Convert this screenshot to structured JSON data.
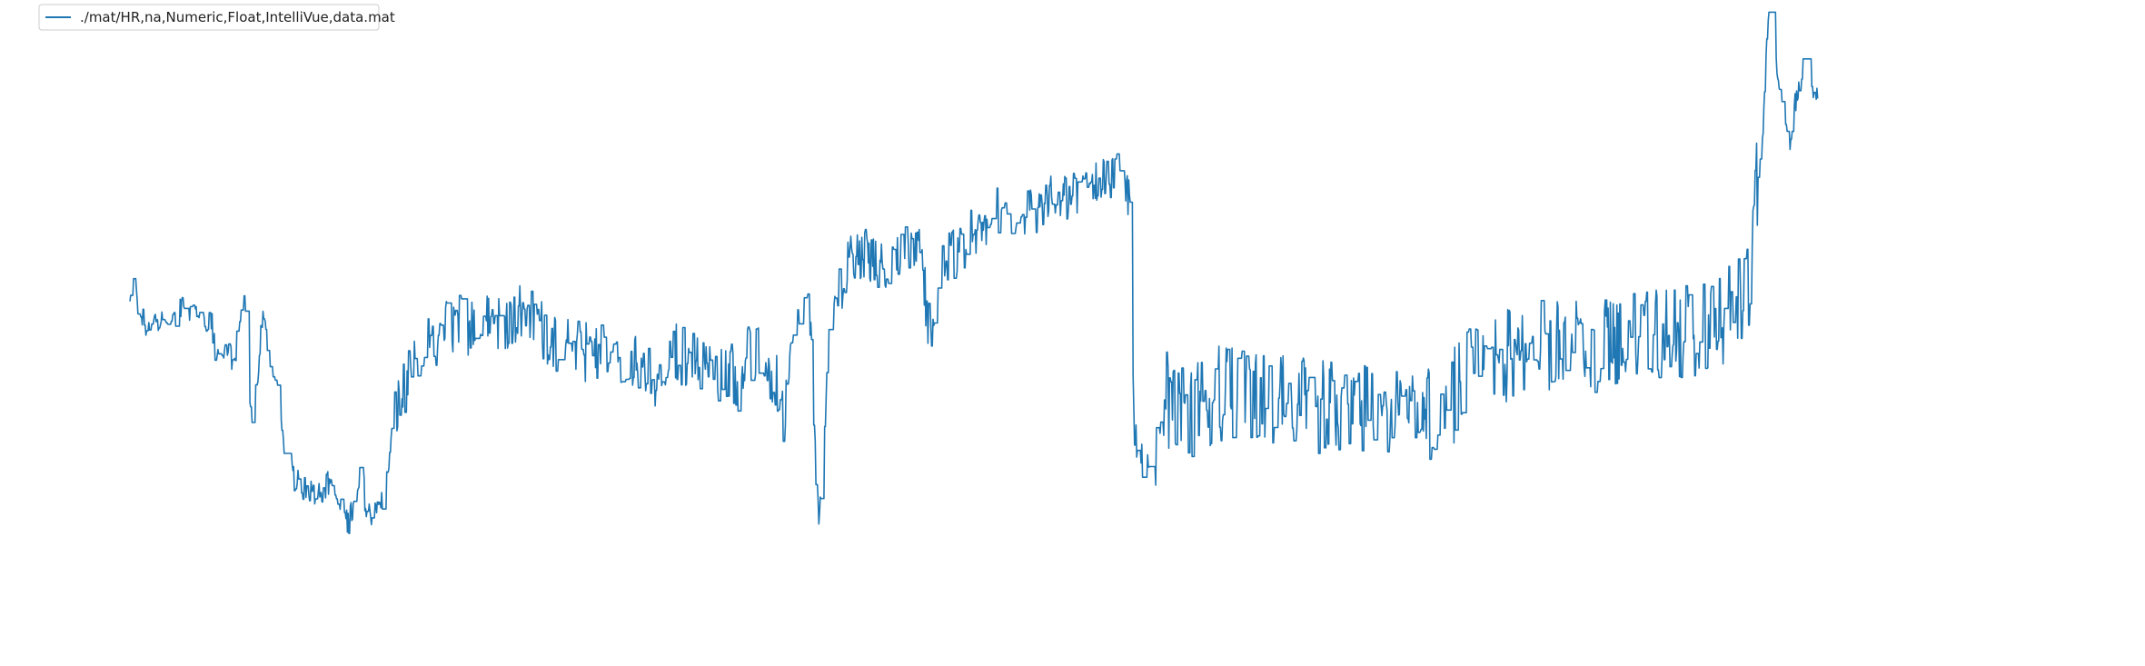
{
  "chart_data": {
    "type": "line",
    "title": "",
    "xlabel": "",
    "ylabel": "",
    "axes_visible": false,
    "grid": false,
    "legend_position": "top-left",
    "xlim": [
      0,
      2140
    ],
    "ylim": [
      0,
      100
    ],
    "series": [
      {
        "name": "./mat/HR,na,Numeric,Float,IntelliVue,data.mat",
        "color": "#1f77b4",
        "anchors": [
          [
            0,
            66.5
          ],
          [
            5,
            70
          ],
          [
            10,
            64
          ],
          [
            20,
            60
          ],
          [
            30,
            63
          ],
          [
            45,
            61
          ],
          [
            60,
            66
          ],
          [
            75,
            64
          ],
          [
            90,
            62
          ],
          [
            95,
            52
          ],
          [
            100,
            57
          ],
          [
            110,
            54
          ],
          [
            115,
            54
          ],
          [
            125,
            66
          ],
          [
            130,
            60
          ],
          [
            133,
            39
          ],
          [
            137,
            43
          ],
          [
            142,
            53
          ],
          [
            145,
            64
          ],
          [
            152,
            57
          ],
          [
            158,
            51
          ],
          [
            165,
            44
          ],
          [
            170,
            34
          ],
          [
            180,
            27
          ],
          [
            190,
            25
          ],
          [
            200,
            24
          ],
          [
            210,
            24
          ],
          [
            220,
            26
          ],
          [
            230,
            21
          ],
          [
            240,
            17
          ],
          [
            250,
            22
          ],
          [
            255,
            30
          ],
          [
            260,
            19
          ],
          [
            270,
            19
          ],
          [
            278,
            22
          ],
          [
            285,
            29
          ],
          [
            290,
            40
          ],
          [
            300,
            46
          ],
          [
            320,
            54
          ],
          [
            350,
            61
          ],
          [
            400,
            62
          ],
          [
            435,
            64
          ],
          [
            450,
            61
          ],
          [
            470,
            57
          ],
          [
            500,
            55
          ],
          [
            530,
            57
          ],
          [
            560,
            52
          ],
          [
            580,
            47
          ],
          [
            600,
            55
          ],
          [
            620,
            53
          ],
          [
            640,
            50
          ],
          [
            660,
            52
          ],
          [
            670,
            48
          ],
          [
            680,
            56
          ],
          [
            700,
            52
          ],
          [
            715,
            46
          ],
          [
            720,
            38
          ],
          [
            725,
            50
          ],
          [
            730,
            60
          ],
          [
            740,
            71
          ],
          [
            748,
            62
          ],
          [
            752,
            37
          ],
          [
            757,
            18
          ],
          [
            762,
            30
          ],
          [
            768,
            55
          ],
          [
            775,
            66
          ],
          [
            790,
            75
          ],
          [
            810,
            77
          ],
          [
            830,
            74
          ],
          [
            840,
            75
          ],
          [
            855,
            80
          ],
          [
            870,
            78
          ],
          [
            878,
            61
          ],
          [
            885,
            63
          ],
          [
            895,
            75
          ],
          [
            920,
            80
          ],
          [
            950,
            87
          ],
          [
            980,
            86
          ],
          [
            1000,
            88
          ],
          [
            1030,
            90
          ],
          [
            1060,
            92
          ],
          [
            1070,
            95
          ],
          [
            1085,
            94
          ],
          [
            1095,
            92
          ],
          [
            1100,
            90
          ],
          [
            1104,
            42
          ],
          [
            1108,
            30
          ],
          [
            1115,
            25
          ],
          [
            1125,
            32
          ],
          [
            1135,
            46
          ],
          [
            1160,
            41
          ],
          [
            1200,
            46
          ],
          [
            1250,
            44
          ],
          [
            1300,
            43
          ],
          [
            1340,
            42
          ],
          [
            1380,
            41
          ],
          [
            1420,
            40
          ],
          [
            1450,
            44
          ],
          [
            1480,
            52
          ],
          [
            1520,
            55
          ],
          [
            1560,
            56
          ],
          [
            1600,
            56
          ],
          [
            1640,
            58
          ],
          [
            1680,
            59
          ],
          [
            1720,
            60
          ],
          [
            1750,
            62
          ],
          [
            1765,
            66
          ],
          [
            1780,
            69
          ],
          [
            1785,
            82
          ],
          [
            1788,
            92
          ],
          [
            1792,
            96
          ],
          [
            1796,
            105
          ],
          [
            1800,
            126
          ],
          [
            1804,
            136
          ],
          [
            1808,
            128
          ],
          [
            1812,
            116
          ],
          [
            1818,
            110
          ],
          [
            1822,
            104
          ],
          [
            1826,
            101
          ],
          [
            1830,
            110
          ],
          [
            1836,
            115
          ],
          [
            1840,
            118
          ],
          [
            1846,
            115
          ],
          [
            1850,
            114
          ],
          [
            1856,
            112
          ]
        ]
      }
    ]
  }
}
